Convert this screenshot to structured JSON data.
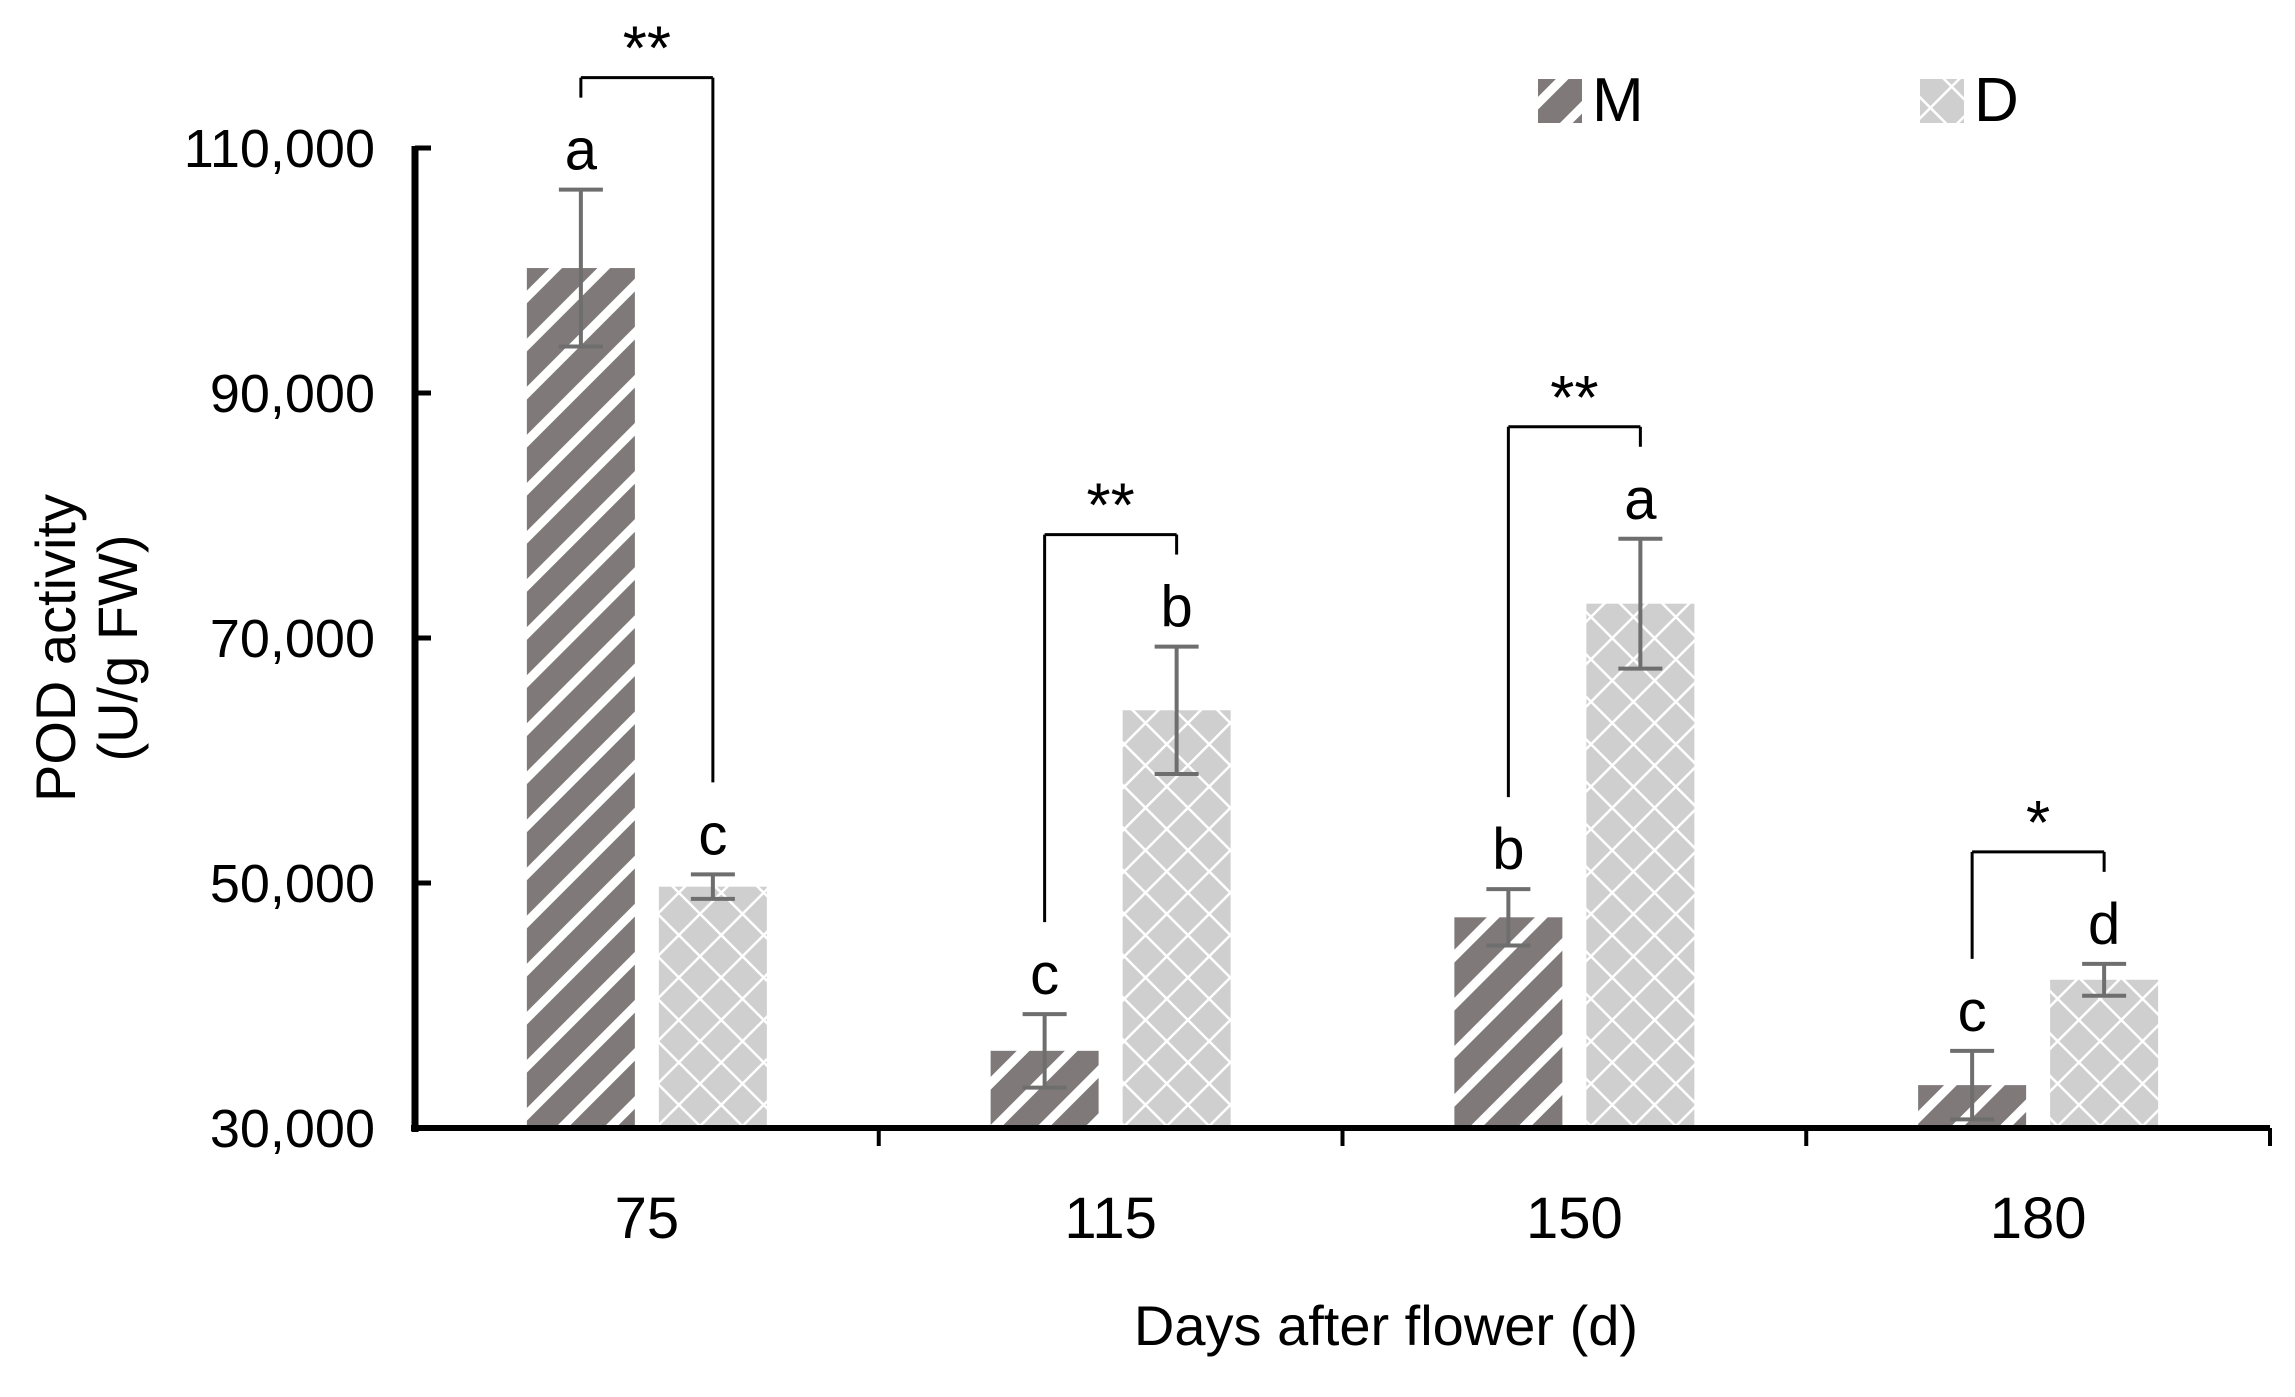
{
  "chart_data": {
    "type": "bar",
    "xlabel": "Days after flower (d)",
    "ylabel_lines": [
      "POD activity",
      "(U/g FW)"
    ],
    "categories": [
      "75",
      "115",
      "150",
      "180"
    ],
    "ylim": [
      30000,
      110000
    ],
    "yticks": [
      30000,
      50000,
      70000,
      90000,
      110000
    ],
    "ytick_labels": [
      "30,000",
      "50,000",
      "70,000",
      "90,000",
      "110,000"
    ],
    "legend_position": "top-right",
    "series": [
      {
        "name": "M",
        "color": "#7f7a79",
        "pattern": "diagonal-stripes",
        "values": [
          100200,
          36300,
          47200,
          33500
        ],
        "errors": [
          6400,
          3000,
          2300,
          2800
        ],
        "letters": [
          "a",
          "c",
          "b",
          "c"
        ]
      },
      {
        "name": "D",
        "color": "#cfcfcf",
        "pattern": "diamond-lattice",
        "values": [
          49700,
          64100,
          72800,
          42100
        ],
        "errors": [
          1000,
          5200,
          5300,
          1300
        ],
        "letters": [
          "c",
          "b",
          "a",
          "d"
        ]
      }
    ],
    "significance": [
      "**",
      "**",
      "**",
      "*"
    ]
  }
}
